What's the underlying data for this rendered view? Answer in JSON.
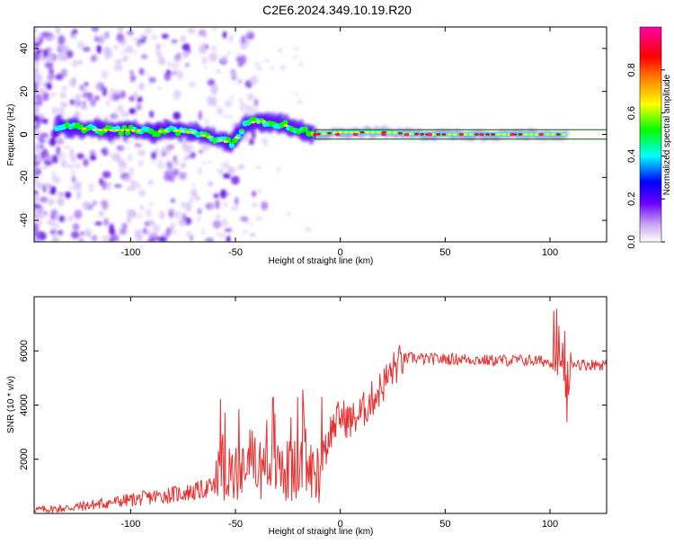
{
  "title": "C2E6.2024.349.10.19.R20",
  "chart_data": [
    {
      "type": "heatmap",
      "xlabel": "Height of straight line (km)",
      "ylabel": "Frequency (Hz)",
      "xlim": [
        -146,
        127
      ],
      "ylim": [
        -50,
        50
      ],
      "x_ticks": [
        -100,
        -50,
        0,
        50,
        100
      ],
      "y_ticks": [
        -40,
        -20,
        0,
        20,
        40
      ],
      "colorbar": {
        "label": "Normalized spectral amplitude",
        "range": [
          0,
          1
        ],
        "ticks": [
          0.0,
          0.2,
          0.4,
          0.6,
          0.8
        ],
        "tick_labels": [
          "0.0",
          "0.2",
          "0.4",
          "0.6",
          "0.8"
        ],
        "colormap": [
          "#ffffff",
          "#c9a6f0",
          "#6a00ff",
          "#0000ff",
          "#00ffff",
          "#00ff00",
          "#ffff00",
          "#ff8000",
          "#ff0000",
          "#ff00aa"
        ]
      },
      "ridge": {
        "x": [
          -146,
          -135,
          -125,
          -115,
          -100,
          -90,
          -80,
          -70,
          -60,
          -52,
          -48,
          -45,
          -40,
          -35,
          -30,
          -25,
          -20,
          -15,
          -12,
          0,
          20,
          40,
          60,
          80,
          100,
          107,
          110,
          127
        ],
        "freq": [
          4,
          4,
          3,
          2,
          2,
          1,
          2,
          1,
          -2,
          -4,
          0,
          5,
          6,
          6,
          5,
          4,
          2,
          1,
          0,
          1,
          1,
          0,
          0,
          0,
          0,
          0,
          0,
          0
        ]
      },
      "fit_line_color": "#006400"
    },
    {
      "type": "line",
      "xlabel": "Height of straight line (km)",
      "ylabel": "SNR (10 * v/v)",
      "xlim": [
        -146,
        127
      ],
      "ylim": [
        0,
        8000
      ],
      "x_ticks": [
        -100,
        -50,
        0,
        50,
        100
      ],
      "y_ticks": [
        2000,
        4000,
        6000
      ],
      "series": [
        {
          "color": "#e83030",
          "x": [
            -146,
            -140,
            -130,
            -120,
            -110,
            -100,
            -90,
            -80,
            -70,
            -60,
            -50,
            -45,
            -40,
            -35,
            -30,
            -25,
            -20,
            -15,
            -10,
            -5,
            0,
            5,
            10,
            15,
            20,
            25,
            30,
            35,
            40,
            50,
            60,
            70,
            80,
            90,
            100,
            105,
            107,
            108,
            110,
            115,
            120,
            127
          ],
          "values": [
            150,
            150,
            200,
            300,
            400,
            500,
            600,
            700,
            800,
            1000,
            1400,
            2000,
            1800,
            1600,
            1700,
            1500,
            1600,
            1600,
            1500,
            3000,
            3600,
            3400,
            3700,
            4200,
            4700,
            5300,
            5700,
            5750,
            5700,
            5700,
            5700,
            5650,
            5650,
            5650,
            5600,
            5600,
            5500,
            3300,
            5600,
            5500,
            5500,
            5500
          ]
        }
      ]
    }
  ]
}
